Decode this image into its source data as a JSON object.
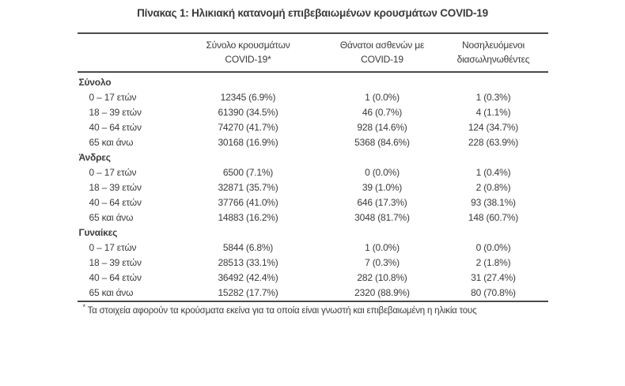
{
  "title": "Πίνακας 1: Ηλικιακή κατανομή επιβεβαιωμένων κρουσμάτων COVID-19",
  "table": {
    "headers": [
      {
        "line1": "Σύνολο κρουσμάτων",
        "line2": "COVID-19*"
      },
      {
        "line1": "Θάνατοι ασθενών με",
        "line2": "COVID-19"
      },
      {
        "line1": "Νοσηλευόμενοι",
        "line2": "διασωληνωθέντες"
      }
    ],
    "sections": [
      {
        "name": "Σύνολο",
        "rows": [
          {
            "label": "0 – 17 ετών",
            "cases": "12345 (6.9%)",
            "deaths": "1 (0.0%)",
            "intubated": "1 (0.3%)"
          },
          {
            "label": "18 – 39 ετών",
            "cases": "61390 (34.5%)",
            "deaths": "46 (0.7%)",
            "intubated": "4 (1.1%)"
          },
          {
            "label": "40 – 64 ετών",
            "cases": "74270 (41.7%)",
            "deaths": "928 (14.6%)",
            "intubated": "124 (34.7%)"
          },
          {
            "label": "65 και άνω",
            "cases": "30168 (16.9%)",
            "deaths": "5368 (84.6%)",
            "intubated": "228 (63.9%)"
          }
        ]
      },
      {
        "name": "Άνδρες",
        "rows": [
          {
            "label": "0 – 17 ετών",
            "cases": "6500 (7.1%)",
            "deaths": "0 (0.0%)",
            "intubated": "1 (0.4%)"
          },
          {
            "label": "18 – 39 ετών",
            "cases": "32871 (35.7%)",
            "deaths": "39 (1.0%)",
            "intubated": "2 (0.8%)"
          },
          {
            "label": "40 – 64 ετών",
            "cases": "37766 (41.0%)",
            "deaths": "646 (17.3%)",
            "intubated": "93 (38.1%)"
          },
          {
            "label": "65 και άνω",
            "cases": "14883 (16.2%)",
            "deaths": "3048 (81.7%)",
            "intubated": "148 (60.7%)"
          }
        ]
      },
      {
        "name": "Γυναίκες",
        "rows": [
          {
            "label": "0 – 17 ετών",
            "cases": "5844 (6.8%)",
            "deaths": "1 (0.0%)",
            "intubated": "0 (0.0%)"
          },
          {
            "label": "18 – 39 ετών",
            "cases": "28513 (33.1%)",
            "deaths": "7 (0.3%)",
            "intubated": "2 (1.8%)"
          },
          {
            "label": "40 – 64 ετών",
            "cases": "36492 (42.4%)",
            "deaths": "282 (10.8%)",
            "intubated": "31 (27.4%)"
          },
          {
            "label": "65 και άνω",
            "cases": "15282 (17.7%)",
            "deaths": "2320 (88.9%)",
            "intubated": "80 (70.8%)"
          }
        ]
      }
    ]
  },
  "footnote": {
    "marker": "*",
    "text": "Τα στοιχεία αφορούν τα κρούσματα εκείνα για τα οποία είναι γνωστή και επιβεβαιωμένη η ηλικία τους"
  },
  "colors": {
    "text": "#3b3b3b",
    "line": "#4a4a4a",
    "background": "#ffffff"
  }
}
